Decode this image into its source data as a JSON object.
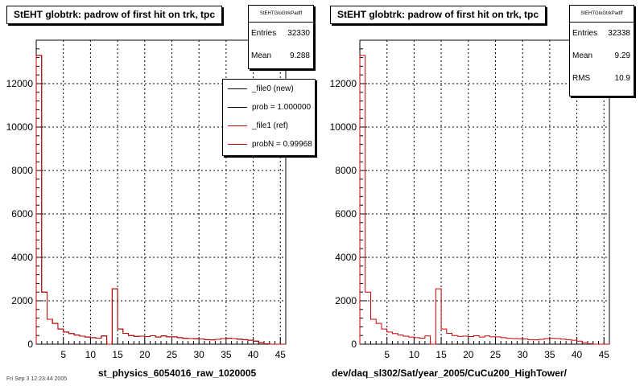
{
  "footer_text": "Fri Sep 3 12:23:44 2005",
  "colors": {
    "new": "#000000",
    "ref": "#cc0000",
    "axis": "#000000"
  },
  "panels": [
    {
      "title": "StEHT globtrk: padrow of first hit on trk, tpc",
      "stats_name": "StEHTGloGtrkPadff",
      "stats": [
        {
          "key": "Entries",
          "value": "32330"
        },
        {
          "key": "Mean",
          "value": "9.288"
        }
      ],
      "legend": [
        {
          "label": "_file0 (new)",
          "color": "#000000"
        },
        {
          "label": "prob = 1.000000",
          "color": "#000000"
        },
        {
          "label": "_file1 (ref)",
          "color": "#cc0000"
        },
        {
          "label": "probN = 0.99968",
          "color": "#cc0000"
        }
      ],
      "xlabel": "st_physics_6054016_raw_1020005"
    },
    {
      "title": "StEHT globtrk: padrow of first hit on trk, tpc",
      "stats_name": "StEHTGloGtrkPadff",
      "stats": [
        {
          "key": "Entries",
          "value": "32338"
        },
        {
          "key": "Mean",
          "value": "9.29"
        },
        {
          "key": "RMS",
          "value": "10.9"
        }
      ],
      "legend": [],
      "xlabel": "dev/daq_sl302/Sat/year_2005/CuCu200_HighTower/"
    }
  ],
  "chart_data": [
    {
      "type": "histogram",
      "title": "StEHT globtrk: padrow of first hit on trk, tpc",
      "xlabel": "st_physics_6054016_raw_1020005",
      "ylabel": "",
      "xlim": [
        0,
        46
      ],
      "ylim": [
        0,
        14000
      ],
      "xticks": [
        5,
        10,
        15,
        20,
        25,
        30,
        35,
        40,
        45
      ],
      "yticks": [
        0,
        2000,
        4000,
        6000,
        8000,
        10000,
        12000
      ],
      "grid": true,
      "bin_edges_start": 0,
      "bin_width": 1,
      "series": [
        {
          "name": "_file0 (new)",
          "color": "#000000",
          "values": [
            13300,
            2400,
            1150,
            960,
            700,
            560,
            490,
            420,
            370,
            330,
            300,
            280,
            380,
            0,
            2550,
            700,
            500,
            400,
            360,
            370,
            350,
            390,
            330,
            380,
            340,
            340,
            300,
            270,
            260,
            250,
            240,
            210,
            200,
            220,
            260,
            270,
            260,
            230,
            210,
            180,
            140,
            70,
            20,
            0,
            0,
            0
          ]
        },
        {
          "name": "_file1 (ref)",
          "color": "#cc0000",
          "values": [
            13300,
            2400,
            1150,
            960,
            700,
            560,
            490,
            420,
            370,
            330,
            300,
            280,
            380,
            0,
            2550,
            700,
            500,
            400,
            360,
            370,
            350,
            390,
            330,
            380,
            340,
            340,
            300,
            270,
            260,
            250,
            240,
            210,
            200,
            220,
            260,
            270,
            260,
            230,
            210,
            180,
            140,
            70,
            20,
            0,
            0,
            0
          ]
        }
      ]
    },
    {
      "type": "histogram",
      "title": "StEHT globtrk: padrow of first hit on trk, tpc",
      "xlabel": "dev/daq_sl302/Sat/year_2005/CuCu200_HighTower/",
      "ylabel": "",
      "xlim": [
        0,
        46
      ],
      "ylim": [
        0,
        14000
      ],
      "xticks": [
        5,
        10,
        15,
        20,
        25,
        30,
        35,
        40,
        45
      ],
      "yticks": [
        0,
        2000,
        4000,
        6000,
        8000,
        10000,
        12000
      ],
      "grid": true,
      "bin_edges_start": 0,
      "bin_width": 1,
      "series": [
        {
          "name": "",
          "color": "#cc0000",
          "values": [
            13300,
            2400,
            1150,
            960,
            700,
            560,
            490,
            420,
            370,
            330,
            300,
            280,
            380,
            0,
            2550,
            700,
            500,
            400,
            360,
            370,
            350,
            390,
            330,
            380,
            340,
            340,
            300,
            270,
            260,
            250,
            240,
            210,
            200,
            220,
            260,
            270,
            260,
            230,
            210,
            180,
            140,
            70,
            20,
            0,
            0,
            0
          ]
        }
      ]
    }
  ]
}
